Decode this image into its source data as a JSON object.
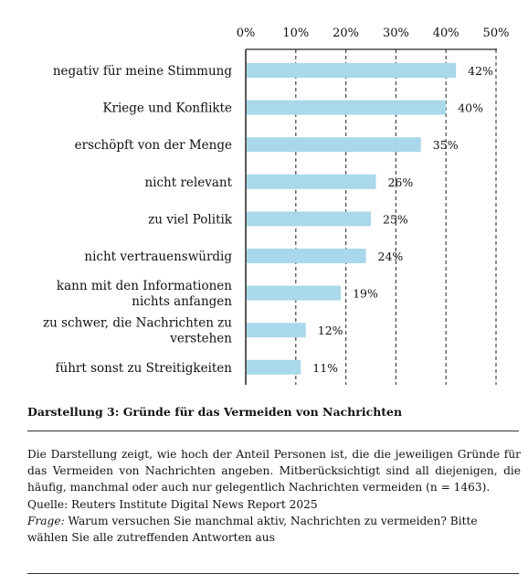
{
  "chart_data": {
    "type": "bar",
    "orientation": "horizontal",
    "categories": [
      [
        "negativ für meine Stimmung"
      ],
      [
        "Kriege und Konflikte"
      ],
      [
        "erschöpft von der Menge"
      ],
      [
        "nicht relevant"
      ],
      [
        "zu viel Politik"
      ],
      [
        "nicht vertrauenswürdig"
      ],
      [
        "kann mit den Informationen",
        "nichts anfangen"
      ],
      [
        "zu schwer, die Nachrichten zu",
        "verstehen"
      ],
      [
        "führt sonst zu Streitigkeiten"
      ]
    ],
    "values": [
      42,
      40,
      35,
      26,
      25,
      24,
      19,
      12,
      11
    ],
    "value_labels": [
      "42%",
      "40%",
      "35%",
      "26%",
      "25%",
      "24%",
      "19%",
      "12%",
      "11%"
    ],
    "xlim": [
      0,
      50
    ],
    "ticks": [
      0,
      10,
      20,
      30,
      40,
      50
    ],
    "tick_labels": [
      "0%",
      "10%",
      "20%",
      "30%",
      "40%",
      "50%"
    ],
    "grid": "vertical dashed",
    "bar_color": "#a9d8ea"
  },
  "caption": "Darstellung 3: Gründe für das Vermeiden von Nachrichten",
  "note": {
    "description": "Die Darstellung zeigt, wie hoch der Anteil Personen ist, die die jeweiligen Gründe für das Vermeiden von Nachrichten angeben. Mitberücksichtigt sind all diejenigen, die häufig, manchmal oder auch nur gelegentlich Nachrichten vermeiden (n = 1463).",
    "source": "Quelle: Reuters Institute Digital News Report 2025",
    "question_label": "Frage:",
    "question": "Warum versuchen Sie manchmal aktiv, Nachrichten zu vermeiden? Bitte wählen Sie alle zutreffenden Antworten aus"
  }
}
